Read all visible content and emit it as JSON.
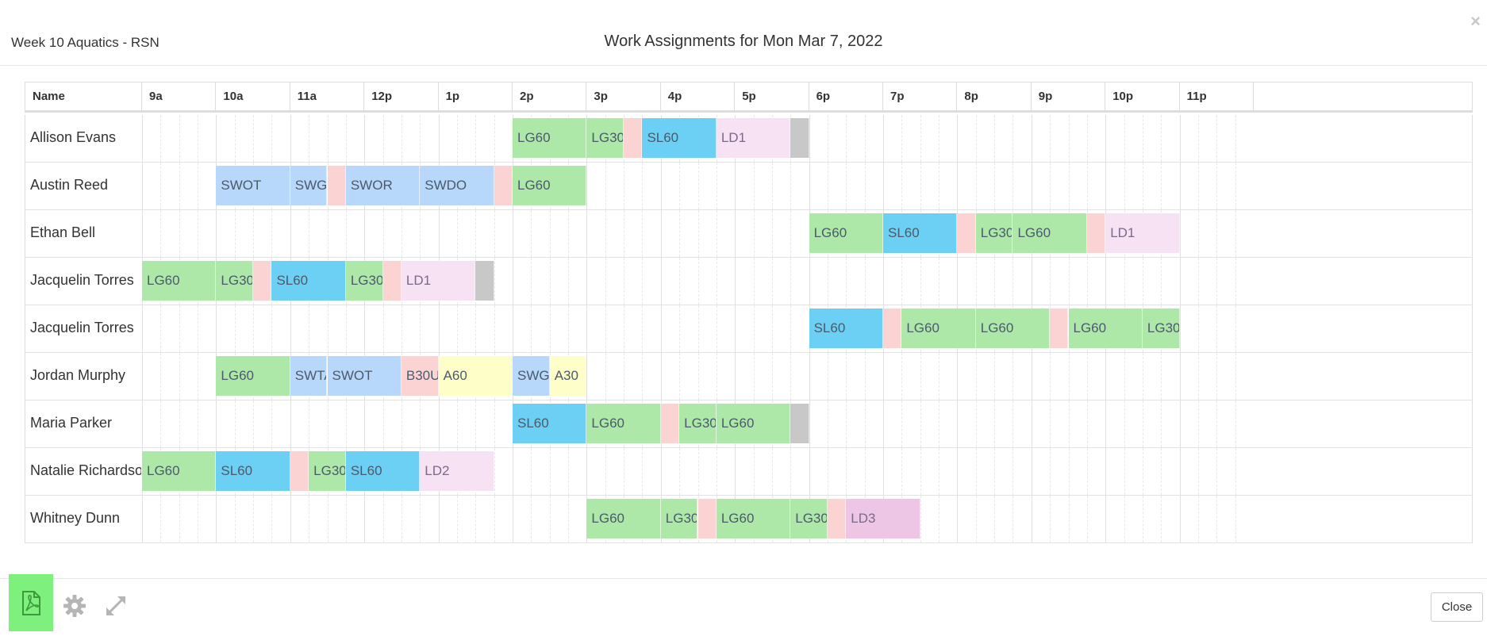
{
  "header": {
    "subtitle": "Week 10 Aquatics - RSN",
    "title": "Work Assignments for Mon Mar 7, 2022",
    "close_icon": "×"
  },
  "columns": {
    "name": "Name",
    "hours": [
      "9a",
      "10a",
      "11a",
      "12p",
      "1p",
      "2p",
      "3p",
      "4p",
      "5p",
      "6p",
      "7p",
      "8p",
      "9p",
      "10p",
      "11p"
    ]
  },
  "colors": {
    "LG": "#aee8a8",
    "SL": "#6ccff4",
    "SW": "#b7d7fb",
    "LD": "#f6e2f2",
    "LD3": "#ecc6e4",
    "break": "#fcd3d3",
    "grey": "#c8c8c8",
    "A": "#fefec9",
    "B": "#fcd3d3",
    "pdf_button": "#7ef07e"
  },
  "rows": [
    {
      "name": "Allison Evans",
      "blocks": [
        {
          "label": "LG60",
          "start": 14,
          "end": 15,
          "kind": "LG"
        },
        {
          "label": "LG30",
          "start": 15,
          "end": 15.5,
          "kind": "LG"
        },
        {
          "label": "",
          "start": 15.5,
          "end": 15.75,
          "kind": "break"
        },
        {
          "label": "SL60",
          "start": 15.75,
          "end": 16.75,
          "kind": "SL"
        },
        {
          "label": "LD1",
          "start": 16.75,
          "end": 17.75,
          "kind": "LD"
        },
        {
          "label": "",
          "start": 17.75,
          "end": 18,
          "kind": "grey"
        }
      ]
    },
    {
      "name": "Austin Reed",
      "blocks": [
        {
          "label": "SWOT",
          "start": 10,
          "end": 11,
          "kind": "SW"
        },
        {
          "label": "SWGU",
          "start": 11,
          "end": 11.5,
          "kind": "SW"
        },
        {
          "label": "",
          "start": 11.5,
          "end": 11.75,
          "kind": "break"
        },
        {
          "label": "SWOR",
          "start": 11.75,
          "end": 12.75,
          "kind": "SW"
        },
        {
          "label": "SWDO",
          "start": 12.75,
          "end": 13.75,
          "kind": "SW"
        },
        {
          "label": "",
          "start": 13.75,
          "end": 14,
          "kind": "break"
        },
        {
          "label": "LG60",
          "start": 14,
          "end": 15,
          "kind": "LG"
        }
      ]
    },
    {
      "name": "Ethan Bell",
      "blocks": [
        {
          "label": "LG60",
          "start": 18,
          "end": 19,
          "kind": "LG"
        },
        {
          "label": "SL60",
          "start": 19,
          "end": 20,
          "kind": "SL"
        },
        {
          "label": "",
          "start": 20,
          "end": 20.25,
          "kind": "break"
        },
        {
          "label": "LG30",
          "start": 20.25,
          "end": 20.75,
          "kind": "LG"
        },
        {
          "label": "LG60",
          "start": 20.75,
          "end": 21.75,
          "kind": "LG"
        },
        {
          "label": "",
          "start": 21.75,
          "end": 22,
          "kind": "break"
        },
        {
          "label": "LD1",
          "start": 22,
          "end": 23,
          "kind": "LD"
        }
      ]
    },
    {
      "name": "Jacquelin Torres",
      "blocks": [
        {
          "label": "LG60",
          "start": 9,
          "end": 10,
          "kind": "LG"
        },
        {
          "label": "LG30",
          "start": 10,
          "end": 10.5,
          "kind": "LG"
        },
        {
          "label": "",
          "start": 10.5,
          "end": 10.75,
          "kind": "break"
        },
        {
          "label": "SL60",
          "start": 10.75,
          "end": 11.75,
          "kind": "SL"
        },
        {
          "label": "LG30",
          "start": 11.75,
          "end": 12.25,
          "kind": "LG"
        },
        {
          "label": "",
          "start": 12.25,
          "end": 12.5,
          "kind": "break"
        },
        {
          "label": "LD1",
          "start": 12.5,
          "end": 13.5,
          "kind": "LD"
        },
        {
          "label": "",
          "start": 13.5,
          "end": 13.75,
          "kind": "grey"
        }
      ]
    },
    {
      "name": "Jacquelin Torres",
      "blocks": [
        {
          "label": "SL60",
          "start": 18,
          "end": 19,
          "kind": "SL"
        },
        {
          "label": "",
          "start": 19,
          "end": 19.25,
          "kind": "break"
        },
        {
          "label": "LG60",
          "start": 19.25,
          "end": 20.25,
          "kind": "LG"
        },
        {
          "label": "LG60",
          "start": 20.25,
          "end": 21.25,
          "kind": "LG"
        },
        {
          "label": "",
          "start": 21.25,
          "end": 21.5,
          "kind": "break"
        },
        {
          "label": "LG60",
          "start": 21.5,
          "end": 22.5,
          "kind": "LG"
        },
        {
          "label": "LG30",
          "start": 22.5,
          "end": 23,
          "kind": "LG"
        }
      ]
    },
    {
      "name": "Jordan Murphy",
      "blocks": [
        {
          "label": "LG60",
          "start": 10,
          "end": 11,
          "kind": "LG"
        },
        {
          "label": "SWTA",
          "start": 11,
          "end": 11.5,
          "kind": "SW"
        },
        {
          "label": "SWOT",
          "start": 11.5,
          "end": 12.5,
          "kind": "SW"
        },
        {
          "label": "B30U",
          "start": 12.5,
          "end": 13,
          "kind": "B"
        },
        {
          "label": "A60",
          "start": 13,
          "end": 14,
          "kind": "A"
        },
        {
          "label": "SWGU",
          "start": 14,
          "end": 14.5,
          "kind": "SW"
        },
        {
          "label": "A30",
          "start": 14.5,
          "end": 15,
          "kind": "A"
        }
      ]
    },
    {
      "name": "Maria Parker",
      "blocks": [
        {
          "label": "SL60",
          "start": 14,
          "end": 15,
          "kind": "SL"
        },
        {
          "label": "LG60",
          "start": 15,
          "end": 16,
          "kind": "LG"
        },
        {
          "label": "",
          "start": 16,
          "end": 16.25,
          "kind": "break"
        },
        {
          "label": "LG30",
          "start": 16.25,
          "end": 16.75,
          "kind": "LG"
        },
        {
          "label": "LG60",
          "start": 16.75,
          "end": 17.75,
          "kind": "LG"
        },
        {
          "label": "",
          "start": 17.75,
          "end": 18,
          "kind": "grey"
        }
      ]
    },
    {
      "name": "Natalie Richardso",
      "blocks": [
        {
          "label": "LG60",
          "start": 9,
          "end": 10,
          "kind": "LG"
        },
        {
          "label": "SL60",
          "start": 10,
          "end": 11,
          "kind": "SL"
        },
        {
          "label": "",
          "start": 11,
          "end": 11.25,
          "kind": "break"
        },
        {
          "label": "LG30",
          "start": 11.25,
          "end": 11.75,
          "kind": "LG"
        },
        {
          "label": "SL60",
          "start": 11.75,
          "end": 12.75,
          "kind": "SL"
        },
        {
          "label": "LD2",
          "start": 12.75,
          "end": 13.75,
          "kind": "LD"
        }
      ]
    },
    {
      "name": "Whitney Dunn",
      "blocks": [
        {
          "label": "LG60",
          "start": 15,
          "end": 16,
          "kind": "LG"
        },
        {
          "label": "LG30",
          "start": 16,
          "end": 16.5,
          "kind": "LG"
        },
        {
          "label": "",
          "start": 16.5,
          "end": 16.75,
          "kind": "break"
        },
        {
          "label": "LG60",
          "start": 16.75,
          "end": 17.75,
          "kind": "LG"
        },
        {
          "label": "LG30",
          "start": 17.75,
          "end": 18.25,
          "kind": "LG"
        },
        {
          "label": "",
          "start": 18.25,
          "end": 18.5,
          "kind": "break"
        },
        {
          "label": "LD3",
          "start": 18.5,
          "end": 19.5,
          "kind": "LD3"
        }
      ]
    }
  ],
  "footer": {
    "pdf_icon": "pdf-icon",
    "gear_icon": "gear-icon",
    "expand_icon": "expand-icon",
    "close_label": "Close"
  }
}
